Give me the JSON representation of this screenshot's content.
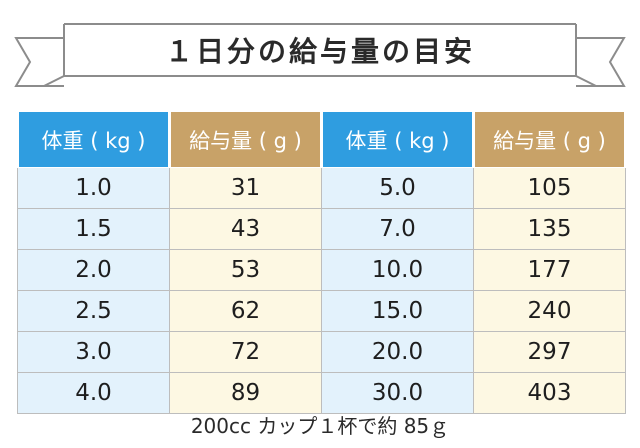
{
  "banner": {
    "title": "１日分の給与量の目安"
  },
  "table": {
    "headers": [
      "体重 ( kg )",
      "給与量 ( g )",
      "体重 ( kg )",
      "給与量 ( g )"
    ],
    "rows": [
      [
        "1.0",
        "31",
        "5.0",
        "105"
      ],
      [
        "1.5",
        "43",
        "7.0",
        "135"
      ],
      [
        "2.0",
        "53",
        "10.0",
        "177"
      ],
      [
        "2.5",
        "62",
        "15.0",
        "240"
      ],
      [
        "3.0",
        "72",
        "20.0",
        "297"
      ],
      [
        "4.0",
        "89",
        "30.0",
        "403"
      ]
    ]
  },
  "footnote": "200cc カップ１杯で約 85ｇ",
  "colors": {
    "weight_header": "#2f9de0",
    "amount_header": "#c8a268",
    "weight_cell": "#e3f2fc",
    "amount_cell": "#fdf8e3"
  }
}
